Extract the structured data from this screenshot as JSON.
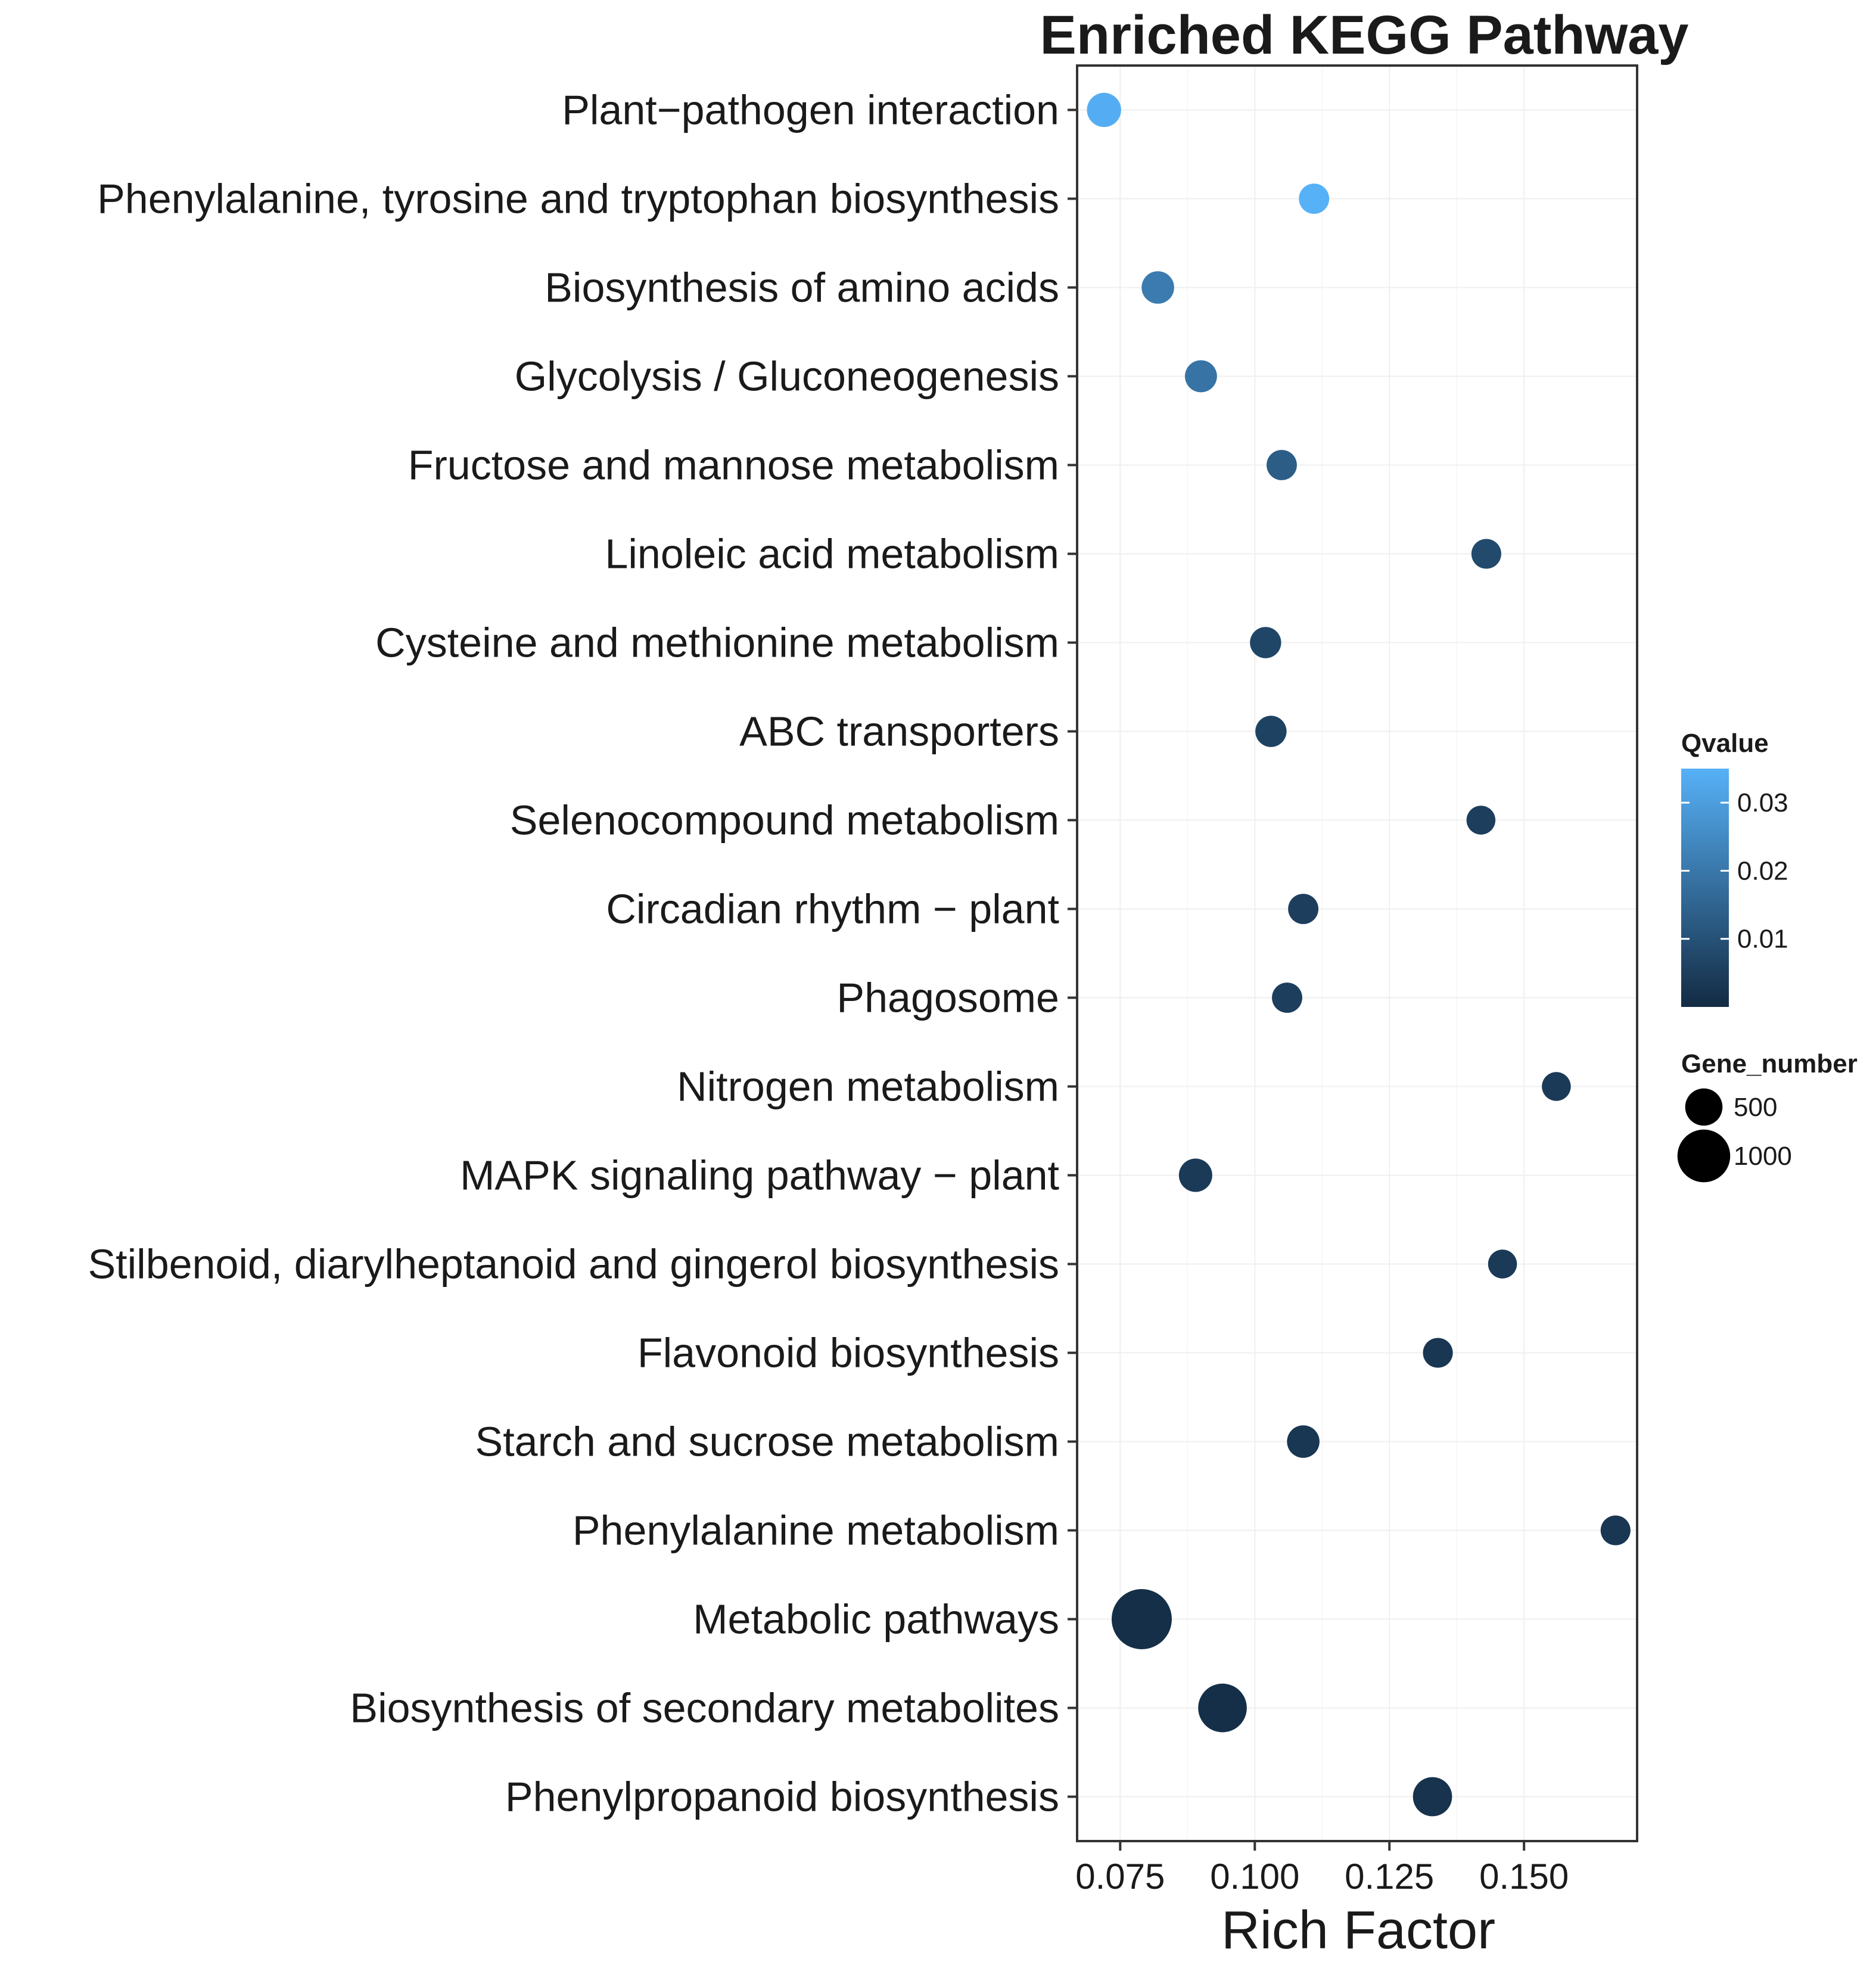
{
  "chart_data": {
    "type": "scatter",
    "title": "Enriched KEGG Pathway",
    "xlabel": "Rich Factor",
    "ylabel": "",
    "xlim": [
      0.067,
      0.171
    ],
    "xticks": [
      0.075,
      0.1,
      0.125,
      0.15
    ],
    "xtick_labels": [
      "0.075",
      "0.100",
      "0.125",
      "0.150"
    ],
    "grid": true,
    "points": [
      {
        "pathway": "Plant−pathogen interaction",
        "rich_factor": 0.072,
        "qvalue": 0.034,
        "gene_number": 420
      },
      {
        "pathway": "Phenylalanine, tyrosine and tryptophan biosynthesis",
        "rich_factor": 0.111,
        "qvalue": 0.035,
        "gene_number": 330
      },
      {
        "pathway": "Biosynthesis of amino acids",
        "rich_factor": 0.082,
        "qvalue": 0.021,
        "gene_number": 380
      },
      {
        "pathway": "Glycolysis / Gluconeogenesis",
        "rich_factor": 0.09,
        "qvalue": 0.019,
        "gene_number": 370
      },
      {
        "pathway": "Fructose and mannose metabolism",
        "rich_factor": 0.105,
        "qvalue": 0.013,
        "gene_number": 330
      },
      {
        "pathway": "Linoleic acid metabolism",
        "rich_factor": 0.143,
        "qvalue": 0.008,
        "gene_number": 320
      },
      {
        "pathway": "Cysteine and methionine metabolism",
        "rich_factor": 0.102,
        "qvalue": 0.007,
        "gene_number": 350
      },
      {
        "pathway": "ABC transporters",
        "rich_factor": 0.103,
        "qvalue": 0.006,
        "gene_number": 350
      },
      {
        "pathway": "Selenocompound metabolism",
        "rich_factor": 0.142,
        "qvalue": 0.005,
        "gene_number": 300
      },
      {
        "pathway": "Circadian rhythm − plant",
        "rich_factor": 0.109,
        "qvalue": 0.005,
        "gene_number": 330
      },
      {
        "pathway": "Phagosome",
        "rich_factor": 0.106,
        "qvalue": 0.005,
        "gene_number": 330
      },
      {
        "pathway": "Nitrogen metabolism",
        "rich_factor": 0.156,
        "qvalue": 0.004,
        "gene_number": 300
      },
      {
        "pathway": "MAPK signaling pathway − plant",
        "rich_factor": 0.089,
        "qvalue": 0.004,
        "gene_number": 400
      },
      {
        "pathway": "Stilbenoid, diarylheptanoid and gingerol biosynthesis",
        "rich_factor": 0.146,
        "qvalue": 0.004,
        "gene_number": 300
      },
      {
        "pathway": "Flavonoid biosynthesis",
        "rich_factor": 0.134,
        "qvalue": 0.003,
        "gene_number": 320
      },
      {
        "pathway": "Starch and sucrose metabolism",
        "rich_factor": 0.109,
        "qvalue": 0.003,
        "gene_number": 380
      },
      {
        "pathway": "Phenylalanine metabolism",
        "rich_factor": 0.167,
        "qvalue": 0.003,
        "gene_number": 320
      },
      {
        "pathway": "Metabolic pathways",
        "rich_factor": 0.079,
        "qvalue": 0.001,
        "gene_number": 1300
      },
      {
        "pathway": "Biosynthesis of secondary metabolites",
        "rich_factor": 0.094,
        "qvalue": 0.001,
        "gene_number": 850
      },
      {
        "pathway": "Phenylpropanoid biosynthesis",
        "rich_factor": 0.133,
        "qvalue": 0.002,
        "gene_number": 550
      }
    ],
    "color_legend": {
      "title": "Qvalue",
      "ticks": [
        0.01,
        0.02,
        0.03
      ],
      "tick_labels": [
        "0.01",
        "0.02",
        "0.03"
      ],
      "range": [
        0.0,
        0.035
      ],
      "low_color": "#132B43",
      "high_color": "#56B1F7"
    },
    "size_legend": {
      "title": "Gene_number",
      "values": [
        500,
        1000
      ],
      "labels": [
        "500",
        "1000"
      ]
    }
  }
}
